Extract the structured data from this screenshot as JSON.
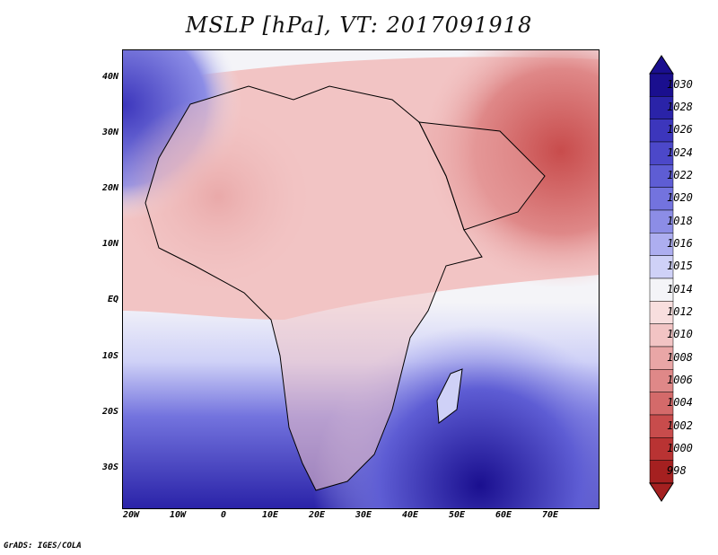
{
  "title": "MSLP [hPa], VT: 2017091918",
  "map": {
    "region": "Africa and Middle East",
    "lat_labels": [
      "40N",
      "30N",
      "20N",
      "10N",
      "EQ",
      "10S",
      "20S",
      "30S"
    ],
    "lon_labels": [
      "20W",
      "10W",
      "0",
      "10E",
      "20E",
      "30E",
      "40E",
      "50E",
      "60E",
      "70E"
    ]
  },
  "colorbar": {
    "labels": [
      "1030",
      "1028",
      "1026",
      "1024",
      "1022",
      "1020",
      "1018",
      "1016",
      "1015",
      "1014",
      "1012",
      "1010",
      "1008",
      "1006",
      "1004",
      "1002",
      "1000",
      "998"
    ],
    "colors": [
      "#1a0f8f",
      "#2a23a8",
      "#3c36bc",
      "#4c48c9",
      "#5e5dd4",
      "#7373de",
      "#8c8de6",
      "#adaef0",
      "#cfd1f7",
      "#f4f4f8",
      "#f8dede",
      "#f2c4c4",
      "#e9a6a6",
      "#df8888",
      "#d46a6a",
      "#c84c4c",
      "#b93333",
      "#a52020"
    ]
  },
  "footer": "GrADS: IGES/COLA"
}
